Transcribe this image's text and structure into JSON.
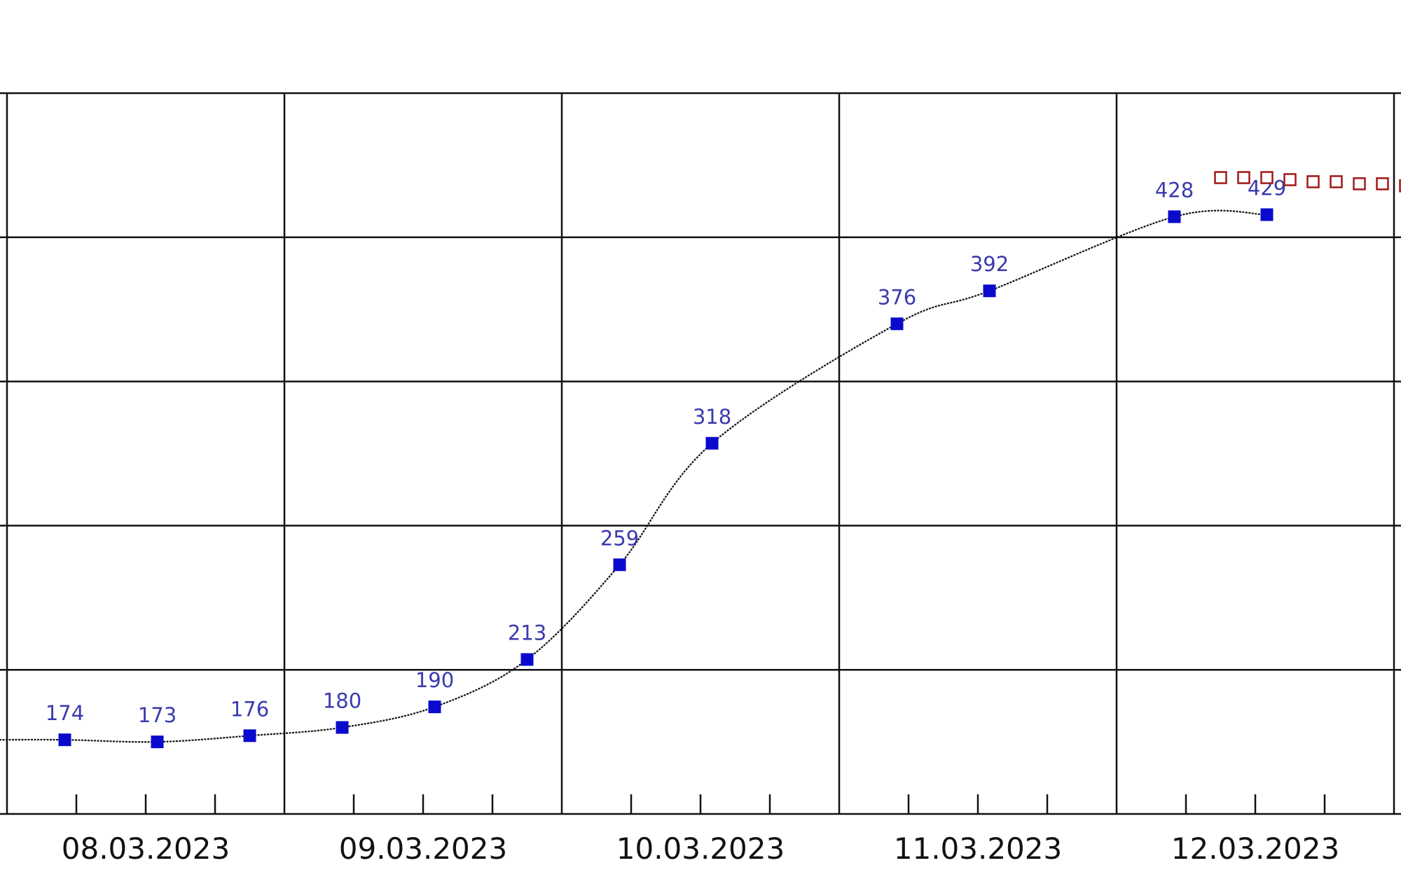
{
  "chart_data": {
    "type": "line",
    "title": "",
    "xlabel": "",
    "ylabel": "",
    "x_tick_labels": [
      "08.03.2023",
      "09.03.2023",
      "10.03.2023",
      "11.03.2023",
      "12.03.2023"
    ],
    "x_range": [
      "08.03.2023 00:00",
      "13.03.2023 00:00"
    ],
    "ylim": [
      138,
      488
    ],
    "y_gridlines": 5,
    "grid": true,
    "legend": "none",
    "series": [
      {
        "style": "dotted line with filled blue square markers and value labels",
        "color": "#0a0acc",
        "points": [
          {
            "x": "08.03.2023 05:00",
            "y": 174
          },
          {
            "x": "08.03.2023 13:00",
            "y": 173
          },
          {
            "x": "08.03.2023 21:00",
            "y": 176
          },
          {
            "x": "09.03.2023 05:00",
            "y": 180
          },
          {
            "x": "09.03.2023 13:00",
            "y": 190
          },
          {
            "x": "09.03.2023 21:00",
            "y": 213
          },
          {
            "x": "10.03.2023 05:00",
            "y": 259
          },
          {
            "x": "10.03.2023 13:00",
            "y": 318
          },
          {
            "x": "11.03.2023 05:00",
            "y": 376
          },
          {
            "x": "11.03.2023 13:00",
            "y": 392
          },
          {
            "x": "12.03.2023 05:00",
            "y": 428
          },
          {
            "x": "12.03.2023 13:00",
            "y": 429
          }
        ]
      },
      {
        "style": "hollow red square markers, no labels",
        "color": "#a01818",
        "points": [
          {
            "x": "12.03.2023 09:00",
            "y": 447
          },
          {
            "x": "12.03.2023 11:00",
            "y": 447
          },
          {
            "x": "12.03.2023 13:00",
            "y": 447
          },
          {
            "x": "12.03.2023 15:00",
            "y": 446
          },
          {
            "x": "12.03.2023 17:00",
            "y": 445
          },
          {
            "x": "12.03.2023 19:00",
            "y": 445
          },
          {
            "x": "12.03.2023 21:00",
            "y": 444
          },
          {
            "x": "12.03.2023 23:00",
            "y": 444
          },
          {
            "x": "13.03.2023 01:00",
            "y": 443
          }
        ]
      }
    ]
  }
}
